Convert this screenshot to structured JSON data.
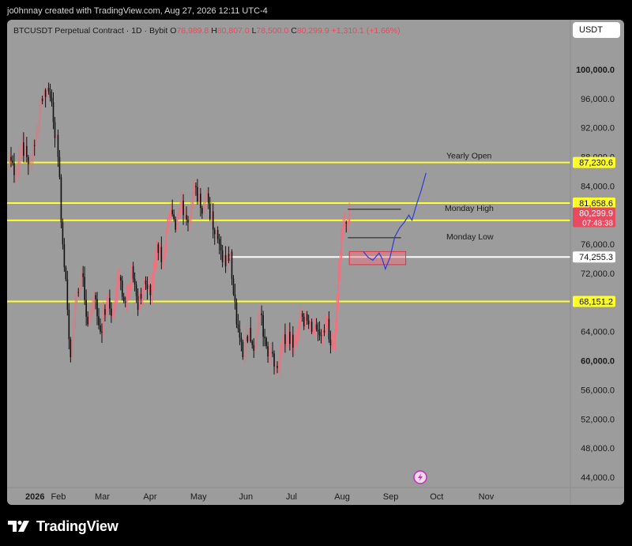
{
  "attribution": "jo0hnnay created with TradingView.com, Aug 27, 2026 12:11 UTC-4",
  "header": {
    "symbol": "BTCUSDT Perpetual Contract · 1D · Bybit",
    "o_label": "O",
    "o_value": "78,989.8",
    "h_label": "H",
    "h_value": "80,807.0",
    "l_label": "L",
    "l_value": "78,500.0",
    "c_label": "C",
    "c_value": "80,299.9",
    "change": "+1,310.1 (+1.66%)"
  },
  "currency_button": "USDT",
  "footer": {
    "brand": "TradingView"
  },
  "colors": {
    "background": "#9c9c9c",
    "up": "#f0707e",
    "down": "#111111",
    "level": "#ffff2a",
    "accent": "#e84a5f",
    "projection": "#2a3cd6"
  },
  "icons": {
    "lightning": "lightning-icon",
    "logo": "tradingview-logo-icon"
  },
  "chart_data": {
    "type": "candlestick",
    "title": "BTCUSDT Perpetual Contract · 1D · Bybit",
    "xlabel": "",
    "ylabel": "",
    "ylim": [
      42000,
      106000
    ],
    "grid": false,
    "y_ticks": [
      {
        "value": 100000,
        "label": "100,000.0",
        "bold": true
      },
      {
        "value": 96000,
        "label": "96,000.0"
      },
      {
        "value": 92000,
        "label": "92,000.0"
      },
      {
        "value": 88000,
        "label": "88,000.0"
      },
      {
        "value": 84000,
        "label": "84,000.0"
      },
      {
        "value": 80000,
        "label": "80,000.0"
      },
      {
        "value": 76000,
        "label": "76,000.0"
      },
      {
        "value": 72000,
        "label": "72,000.0"
      },
      {
        "value": 68000,
        "label": "68,000.0"
      },
      {
        "value": 64000,
        "label": "64,000.0"
      },
      {
        "value": 60000,
        "label": "60,000.0",
        "bold": true
      },
      {
        "value": 56000,
        "label": "56,000.0"
      },
      {
        "value": 52000,
        "label": "52,000.0"
      },
      {
        "value": 48000,
        "label": "48,000.0"
      },
      {
        "value": 44000,
        "label": "44,000.0"
      }
    ],
    "x_ticks": [
      {
        "day": 0,
        "label": "2026",
        "bold": true
      },
      {
        "day": 31,
        "label": "Feb"
      },
      {
        "day": 59,
        "label": "Mar"
      },
      {
        "day": 90,
        "label": "Apr"
      },
      {
        "day": 120,
        "label": "May"
      },
      {
        "day": 151,
        "label": "Jun"
      },
      {
        "day": 181,
        "label": "Jul"
      },
      {
        "day": 212,
        "label": "Aug"
      },
      {
        "day": 243,
        "label": "Sep"
      },
      {
        "day": 273,
        "label": "Oct"
      },
      {
        "day": 304,
        "label": "Nov"
      }
    ],
    "path": [
      [
        0,
        88000
      ],
      [
        4,
        86000
      ],
      [
        8,
        90000
      ],
      [
        12,
        87000
      ],
      [
        16,
        89500
      ],
      [
        20,
        96000
      ],
      [
        24,
        97500
      ],
      [
        27,
        95500
      ],
      [
        31,
        88000
      ],
      [
        34,
        76000
      ],
      [
        37,
        67000
      ],
      [
        39,
        60500
      ],
      [
        42,
        68000
      ],
      [
        46,
        72000
      ],
      [
        50,
        65000
      ],
      [
        54,
        69000
      ],
      [
        58,
        64000
      ],
      [
        62,
        68000
      ],
      [
        66,
        66500
      ],
      [
        70,
        71500
      ],
      [
        74,
        68000
      ],
      [
        78,
        73000
      ],
      [
        82,
        67000
      ],
      [
        86,
        71000
      ],
      [
        90,
        69000
      ],
      [
        94,
        76000
      ],
      [
        98,
        74000
      ],
      [
        102,
        80000
      ],
      [
        106,
        78000
      ],
      [
        110,
        82000
      ],
      [
        114,
        79000
      ],
      [
        118,
        84000
      ],
      [
        122,
        81000
      ],
      [
        126,
        83000
      ],
      [
        130,
        78000
      ],
      [
        134,
        76000
      ],
      [
        138,
        73000
      ],
      [
        141,
        75000
      ],
      [
        145,
        65000
      ],
      [
        149,
        60500
      ],
      [
        153,
        64500
      ],
      [
        157,
        62000
      ],
      [
        160,
        66500
      ],
      [
        164,
        62000
      ],
      [
        168,
        61000
      ],
      [
        171,
        59000
      ],
      [
        174,
        62500
      ],
      [
        178,
        64000
      ],
      [
        182,
        62500
      ],
      [
        186,
        66500
      ],
      [
        190,
        65500
      ],
      [
        194,
        64000
      ],
      [
        198,
        63500
      ],
      [
        202,
        65500
      ],
      [
        206,
        62500
      ],
      [
        208,
        64500
      ],
      [
        210,
        72500
      ],
      [
        212,
        78000
      ],
      [
        214,
        79000
      ],
      [
        216,
        78989.8
      ],
      [
        217,
        80299.9
      ]
    ],
    "last_close": 80299.9,
    "levels": [
      {
        "value": 87230.6,
        "label": "87,230.6",
        "note": "Yearly Open",
        "color": "#ffff2a"
      },
      {
        "value": 81658.6,
        "label": "81,658.6",
        "note": "",
        "color": "#ffff2a"
      },
      {
        "value": 79279.7,
        "label": "79,279.7",
        "note": "",
        "color": "#ffff2a"
      },
      {
        "value": 74255.3,
        "label": "74,255.3",
        "note": "",
        "color": "#ffffff"
      },
      {
        "value": 68151.2,
        "label": "68,151.2",
        "note": "",
        "color": "#ffff2a"
      }
    ],
    "price_badge": {
      "value": 80299.9,
      "label": "80,299.9",
      "countdown": "07:48:38"
    },
    "annotations": [
      {
        "label": "Monday High",
        "value": 80807.0,
        "day_start": 216,
        "day_end": 250
      },
      {
        "label": "Monday Low",
        "value": 76900,
        "day_start": 216,
        "day_end": 250
      }
    ],
    "zone": {
      "day_start": 217,
      "day_end": 253,
      "y_top": 75000,
      "y_bottom": 73200
    },
    "projection": [
      [
        226,
        75000
      ],
      [
        229,
        74200
      ],
      [
        232,
        73800
      ],
      [
        236,
        74800
      ],
      [
        238,
        74000
      ],
      [
        240,
        72600
      ],
      [
        243,
        74200
      ],
      [
        246,
        77000
      ],
      [
        249,
        78200
      ],
      [
        252,
        79000
      ],
      [
        255,
        80000
      ],
      [
        257,
        79300
      ],
      [
        260,
        81500
      ],
      [
        263,
        83500
      ],
      [
        266,
        85800
      ]
    ]
  }
}
